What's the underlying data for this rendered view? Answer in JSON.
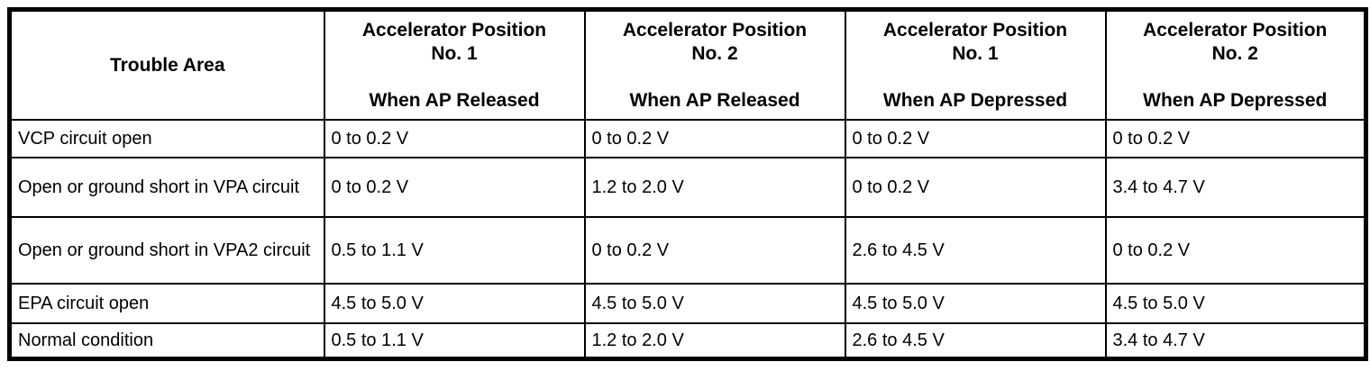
{
  "colors": {
    "border": "#000000",
    "background": "#ffffff",
    "text": "#000000"
  },
  "table": {
    "columns": [
      {
        "title": "Trouble Area",
        "subtitle": ""
      },
      {
        "title": "Accelerator Position\nNo. 1",
        "subtitle": "When AP Released"
      },
      {
        "title": "Accelerator Position\nNo. 2",
        "subtitle": "When AP Released"
      },
      {
        "title": "Accelerator Position\nNo. 1",
        "subtitle": "When AP Depressed"
      },
      {
        "title": "Accelerator Position\nNo. 2",
        "subtitle": "When AP Depressed"
      }
    ],
    "rows": [
      {
        "trouble_area": "VCP circuit open",
        "values": [
          "0 to 0.2 V",
          "0 to 0.2 V",
          "0 to 0.2 V",
          "0 to 0.2 V"
        ]
      },
      {
        "trouble_area": "Open or ground short in VPA circuit",
        "values": [
          "0 to 0.2 V",
          "1.2 to 2.0 V",
          "0 to 0.2 V",
          "3.4 to 4.7 V"
        ]
      },
      {
        "trouble_area": "Open or ground short in VPA2 circuit",
        "values": [
          "0.5 to 1.1 V",
          "0 to 0.2 V",
          "2.6 to 4.5 V",
          "0 to 0.2 V"
        ]
      },
      {
        "trouble_area": "EPA circuit open",
        "values": [
          "4.5 to 5.0 V",
          "4.5 to 5.0 V",
          "4.5 to 5.0 V",
          "4.5 to 5.0 V"
        ]
      },
      {
        "trouble_area": "Normal condition",
        "values": [
          "0.5 to 1.1 V",
          "1.2 to 2.0 V",
          "2.6 to 4.5 V",
          "3.4 to 4.7 V"
        ]
      }
    ]
  }
}
